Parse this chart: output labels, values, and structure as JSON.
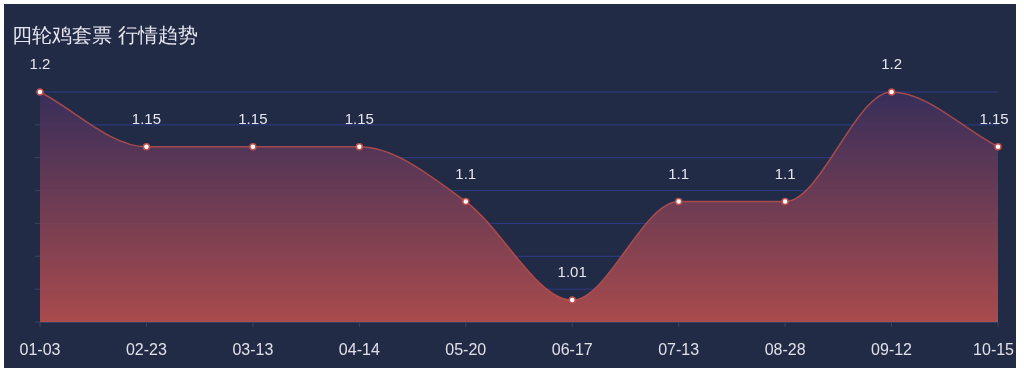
{
  "chart_data": {
    "type": "area",
    "title": "四轮鸡套票 行情趋势",
    "categories": [
      "01-03",
      "02-23",
      "03-13",
      "04-14",
      "05-20",
      "06-17",
      "07-13",
      "08-28",
      "09-12",
      "10-15"
    ],
    "series": [
      {
        "color": "#c0504d",
        "values": [
          1.2,
          1.15,
          1.15,
          1.15,
          1.1,
          1.01,
          1.1,
          1.1,
          1.2,
          1.15
        ]
      }
    ],
    "ylim": [
      0.99,
      1.2
    ],
    "yticks": [
      {
        "value": 0.99,
        "label": null
      },
      {
        "value": 1.02,
        "label": null
      },
      {
        "value": 1.05,
        "label": null
      },
      {
        "value": 1.08,
        "label": null
      },
      {
        "value": 1.11,
        "label": null
      },
      {
        "value": 1.14,
        "label": null
      },
      {
        "value": 1.17,
        "label": null
      },
      {
        "value": 1.2,
        "label": null
      }
    ],
    "grid": "y",
    "tick_labels": "x",
    "data_labels": true,
    "marker": "circle"
  }
}
